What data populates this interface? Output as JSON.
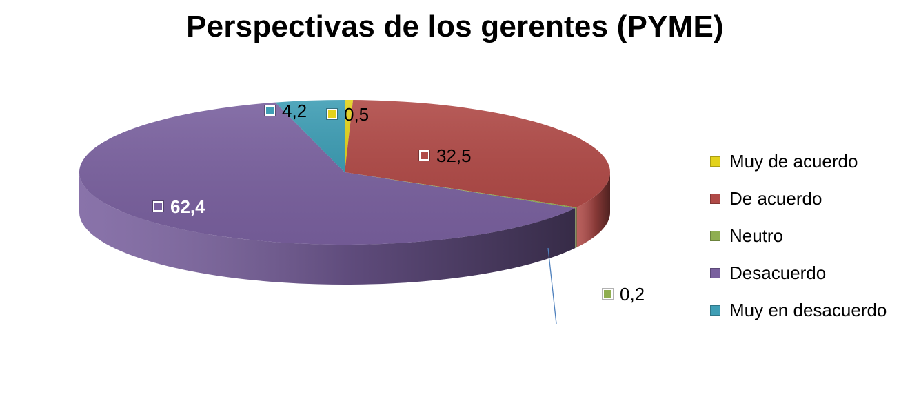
{
  "chart_data": {
    "type": "pie",
    "title": "Perspectivas de los gerentes (PYME)",
    "categories": [
      "Muy de acuerdo",
      "De acuerdo",
      "Neutro",
      "Desacuerdo",
      "Muy en desacuerdo"
    ],
    "values": [
      0.5,
      32.5,
      0.2,
      62.4,
      4.2
    ],
    "value_labels": [
      "0,5",
      "32,5",
      "0,2",
      "62,4",
      "4,2"
    ],
    "colors": [
      "#e3d21b",
      "#b04a47",
      "#8fae50",
      "#79609e",
      "#3f9eb5"
    ],
    "style": "3d",
    "legend_position": "right"
  }
}
